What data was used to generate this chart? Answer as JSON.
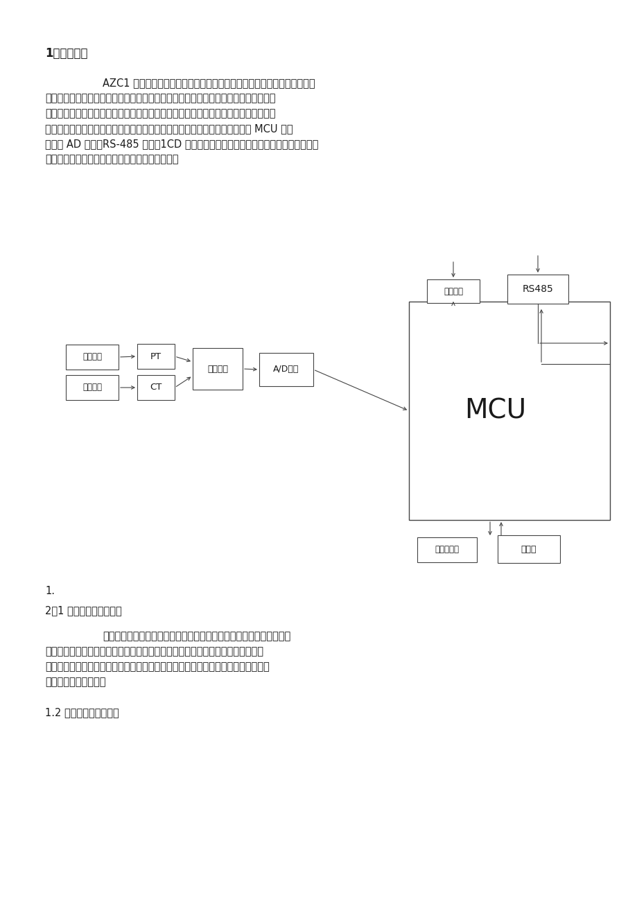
{
  "bg_color": "#ffffff",
  "text_color": "#1a1a1a",
  "line_color": "#555555",
  "title": "1、原理分析",
  "para1_lines": [
    "        AZC1 智能集成式谐波抑制电力电容以共补电容或分补电容为主体，采用微",
    "型电子元件技术、微型传感器技术、微型网络技术和电器制造技术，将智能组件、控制",
    "器、电容器、电抗器、塑壳断路器等元件微型化，整机体积小，结构精巧。智能电容控",
    "制器通过电流互感器、电压采样计算出无功缺额、功率因数等参数，以工业级 MCU 为核",
    "心，同 AD 转换、RS-485 通讯、1CD 显示、数据存储等构成一个系统，集采集、运算、",
    "分析、控制、通信、人机交互、数据存储于一体。"
  ],
  "label_1": "1.",
  "label_21": "2．1 智能网络控制功能。",
  "para2_lines": [
    "        自动检测及跟踪系统中的无功功率变化，自动投切电容器组。投切方法",
    "为：容量相同的电容器，按循环投切原则；容量不同的电容器，按适补原则进行投",
    "切；先投先切，先退先投。补偿工况恒定时，电容器每一小时循环投切一次，避免单",
    "只电容器长时间投运。"
  ],
  "label_12": "1.2 快速投切电容器功能",
  "box_3xdy": "三相电压",
  "box_3xdl": "三相电流",
  "box_pt": "PT",
  "box_ct": "CT",
  "box_sig": "信号处理",
  "box_ad": "A/D转换",
  "box_mcu": "MCU",
  "box_ps": "电源模块",
  "box_rs": "RS485",
  "box_ds": "数据存储器",
  "box_ec": "电容组"
}
